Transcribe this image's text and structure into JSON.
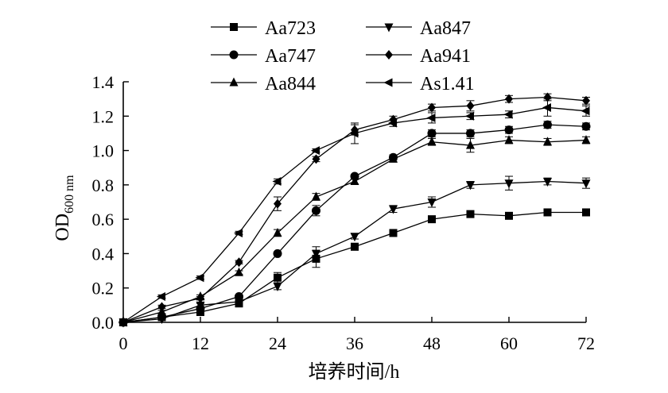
{
  "chart_data": {
    "type": "line",
    "xlabel": "培养时间/h",
    "ylabel": "OD",
    "ylabel_subscript": "600 nm",
    "xlim": [
      0,
      72
    ],
    "ylim": [
      0,
      1.4
    ],
    "x_ticks": [
      "0",
      "12",
      "24",
      "36",
      "48",
      "60",
      "72"
    ],
    "y_ticks": [
      "0.0",
      "0.2",
      "0.4",
      "0.6",
      "0.8",
      "1.0",
      "1.2",
      "1.4"
    ],
    "x_tick_values": [
      0,
      12,
      24,
      36,
      48,
      60,
      72
    ],
    "y_tick_values": [
      0,
      0.2,
      0.4,
      0.6,
      0.8,
      1.0,
      1.2,
      1.4
    ],
    "grid": false,
    "legend_placement": "top",
    "x": [
      0,
      6,
      12,
      18,
      24,
      30,
      36,
      42,
      48,
      54,
      60,
      66,
      72
    ],
    "series": [
      {
        "name": "Aa723",
        "marker": "square",
        "values": [
          0.0,
          0.03,
          0.06,
          0.11,
          0.26,
          0.37,
          0.44,
          0.52,
          0.6,
          0.63,
          0.62,
          0.64,
          0.64
        ],
        "errors": [
          0.005,
          0.01,
          0.01,
          0.02,
          0.03,
          0.05,
          0.02,
          0.015,
          0.015,
          0.015,
          0.015,
          0.015,
          0.015
        ]
      },
      {
        "name": "Aa747",
        "marker": "circle",
        "values": [
          0.0,
          0.03,
          0.08,
          0.15,
          0.4,
          0.65,
          0.85,
          0.96,
          1.1,
          1.1,
          1.12,
          1.15,
          1.14
        ],
        "errors": [
          0.005,
          0.01,
          0.01,
          0.01,
          0.01,
          0.03,
          0.01,
          0.015,
          0.02,
          0.02,
          0.02,
          0.02,
          0.02
        ]
      },
      {
        "name": "Aa844",
        "marker": "triangle-up",
        "values": [
          0.0,
          0.06,
          0.15,
          0.29,
          0.52,
          0.73,
          0.82,
          0.95,
          1.05,
          1.03,
          1.06,
          1.05,
          1.06
        ],
        "errors": [
          0.005,
          0.01,
          0.01,
          0.01,
          0.02,
          0.02,
          0.015,
          0.015,
          0.02,
          0.04,
          0.02,
          0.02,
          0.02
        ]
      },
      {
        "name": "Aa847",
        "marker": "triangle-down",
        "values": [
          0.0,
          0.02,
          0.1,
          0.12,
          0.21,
          0.4,
          0.5,
          0.66,
          0.7,
          0.8,
          0.81,
          0.82,
          0.81
        ],
        "errors": [
          0.005,
          0.01,
          0.01,
          0.01,
          0.02,
          0.04,
          0.015,
          0.02,
          0.03,
          0.02,
          0.04,
          0.02,
          0.03
        ]
      },
      {
        "name": "Aa941",
        "marker": "diamond",
        "values": [
          0.0,
          0.09,
          0.14,
          0.35,
          0.69,
          0.95,
          1.12,
          1.18,
          1.25,
          1.26,
          1.3,
          1.31,
          1.29
        ],
        "errors": [
          0.005,
          0.01,
          0.01,
          0.01,
          0.04,
          0.015,
          0.03,
          0.02,
          0.02,
          0.03,
          0.02,
          0.02,
          0.02
        ]
      },
      {
        "name": "As1.41",
        "marker": "triangle-left",
        "values": [
          0.0,
          0.15,
          0.26,
          0.52,
          0.82,
          1.0,
          1.1,
          1.16,
          1.19,
          1.2,
          1.21,
          1.25,
          1.23
        ],
        "errors": [
          0.005,
          0.01,
          0.01,
          0.01,
          0.015,
          0.01,
          0.06,
          0.02,
          0.03,
          0.02,
          0.02,
          0.05,
          0.03
        ]
      }
    ]
  }
}
